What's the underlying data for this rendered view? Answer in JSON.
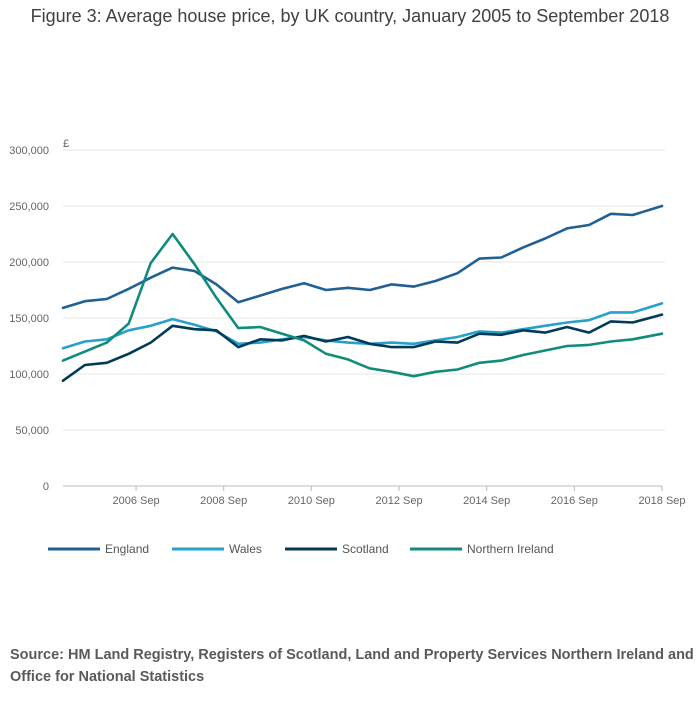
{
  "chart_data": {
    "type": "line",
    "title": "Figure 3: Average house price, by UK country, January 2005 to September 2018",
    "ylabel": "£",
    "xlabel": "",
    "ylim": [
      0,
      300000
    ],
    "y_ticks": [
      0,
      50000,
      100000,
      150000,
      200000,
      250000,
      300000
    ],
    "y_tick_labels": [
      "0",
      "50,000",
      "100,000",
      "150,000",
      "200,000",
      "250,000",
      "300,000"
    ],
    "x_range": [
      "2005 Jan",
      "2018 Sep"
    ],
    "x_ticks": [
      "2006 Sep",
      "2008 Sep",
      "2010 Sep",
      "2012 Sep",
      "2014 Sep",
      "2016 Sep",
      "2018 Sep"
    ],
    "grid": "horizontal",
    "legend_position": "bottom",
    "series": [
      {
        "name": "England",
        "color": "#206095",
        "points": [
          [
            "2005 Jan",
            159000
          ],
          [
            "2005 Jul",
            165000
          ],
          [
            "2006 Jan",
            167000
          ],
          [
            "2006 Jul",
            176000
          ],
          [
            "2007 Jan",
            186000
          ],
          [
            "2007 Jul",
            195000
          ],
          [
            "2008 Jan",
            192000
          ],
          [
            "2008 Jul",
            180000
          ],
          [
            "2009 Jan",
            164000
          ],
          [
            "2009 Jul",
            170000
          ],
          [
            "2010 Jan",
            176000
          ],
          [
            "2010 Jul",
            181000
          ],
          [
            "2011 Jan",
            175000
          ],
          [
            "2011 Jul",
            177000
          ],
          [
            "2012 Jan",
            175000
          ],
          [
            "2012 Jul",
            180000
          ],
          [
            "2013 Jan",
            178000
          ],
          [
            "2013 Jul",
            183000
          ],
          [
            "2014 Jan",
            190000
          ],
          [
            "2014 Jul",
            203000
          ],
          [
            "2015 Jan",
            204000
          ],
          [
            "2015 Jul",
            213000
          ],
          [
            "2016 Jan",
            221000
          ],
          [
            "2016 Jul",
            230000
          ],
          [
            "2017 Jan",
            233000
          ],
          [
            "2017 Jul",
            243000
          ],
          [
            "2018 Jan",
            242000
          ],
          [
            "2018 Sep",
            250000
          ]
        ]
      },
      {
        "name": "Wales",
        "color": "#27a0cc",
        "points": [
          [
            "2005 Jan",
            123000
          ],
          [
            "2005 Jul",
            129000
          ],
          [
            "2006 Jan",
            131000
          ],
          [
            "2006 Jul",
            139000
          ],
          [
            "2007 Jan",
            143000
          ],
          [
            "2007 Jul",
            149000
          ],
          [
            "2008 Jan",
            144000
          ],
          [
            "2008 Jul",
            138000
          ],
          [
            "2009 Jan",
            127000
          ],
          [
            "2009 Jul",
            128000
          ],
          [
            "2010 Jan",
            131000
          ],
          [
            "2010 Jul",
            133000
          ],
          [
            "2011 Jan",
            130000
          ],
          [
            "2011 Jul",
            128000
          ],
          [
            "2012 Jan",
            127000
          ],
          [
            "2012 Jul",
            128000
          ],
          [
            "2013 Jan",
            127000
          ],
          [
            "2013 Jul",
            130000
          ],
          [
            "2014 Jan",
            133000
          ],
          [
            "2014 Jul",
            138000
          ],
          [
            "2015 Jan",
            137000
          ],
          [
            "2015 Jul",
            140000
          ],
          [
            "2016 Jan",
            143000
          ],
          [
            "2016 Jul",
            146000
          ],
          [
            "2017 Jan",
            148000
          ],
          [
            "2017 Jul",
            155000
          ],
          [
            "2018 Jan",
            155000
          ],
          [
            "2018 Sep",
            163000
          ]
        ]
      },
      {
        "name": "Scotland",
        "color": "#003c57",
        "points": [
          [
            "2005 Jan",
            94000
          ],
          [
            "2005 Jul",
            108000
          ],
          [
            "2006 Jan",
            110000
          ],
          [
            "2006 Jul",
            118000
          ],
          [
            "2007 Jan",
            128000
          ],
          [
            "2007 Jul",
            143000
          ],
          [
            "2008 Jan",
            140000
          ],
          [
            "2008 Jul",
            139000
          ],
          [
            "2009 Jan",
            124000
          ],
          [
            "2009 Jul",
            131000
          ],
          [
            "2010 Jan",
            130000
          ],
          [
            "2010 Jul",
            134000
          ],
          [
            "2011 Jan",
            129000
          ],
          [
            "2011 Jul",
            133000
          ],
          [
            "2012 Jan",
            127000
          ],
          [
            "2012 Jul",
            124000
          ],
          [
            "2013 Jan",
            124000
          ],
          [
            "2013 Jul",
            129000
          ],
          [
            "2014 Jan",
            128000
          ],
          [
            "2014 Jul",
            136000
          ],
          [
            "2015 Jan",
            135000
          ],
          [
            "2015 Jul",
            139000
          ],
          [
            "2016 Jan",
            137000
          ],
          [
            "2016 Jul",
            142000
          ],
          [
            "2017 Jan",
            137000
          ],
          [
            "2017 Jul",
            147000
          ],
          [
            "2018 Jan",
            146000
          ],
          [
            "2018 Sep",
            153000
          ]
        ]
      },
      {
        "name": "Northern Ireland",
        "color": "#118c7b",
        "points": [
          [
            "2005 Jan",
            112000
          ],
          [
            "2005 Jul",
            120000
          ],
          [
            "2006 Jan",
            128000
          ],
          [
            "2006 Jul",
            145000
          ],
          [
            "2007 Jan",
            199000
          ],
          [
            "2007 Jul",
            225000
          ],
          [
            "2008 Jan",
            198000
          ],
          [
            "2008 Jul",
            168000
          ],
          [
            "2009 Jan",
            141000
          ],
          [
            "2009 Jul",
            142000
          ],
          [
            "2010 Jan",
            136000
          ],
          [
            "2010 Jul",
            130000
          ],
          [
            "2011 Jan",
            118000
          ],
          [
            "2011 Jul",
            113000
          ],
          [
            "2012 Jan",
            105000
          ],
          [
            "2012 Jul",
            102000
          ],
          [
            "2013 Jan",
            98000
          ],
          [
            "2013 Jul",
            102000
          ],
          [
            "2014 Jan",
            104000
          ],
          [
            "2014 Jul",
            110000
          ],
          [
            "2015 Jan",
            112000
          ],
          [
            "2015 Jul",
            117000
          ],
          [
            "2016 Jan",
            121000
          ],
          [
            "2016 Jul",
            125000
          ],
          [
            "2017 Jan",
            126000
          ],
          [
            "2017 Jul",
            129000
          ],
          [
            "2018 Jan",
            131000
          ],
          [
            "2018 Sep",
            136000
          ]
        ]
      }
    ]
  },
  "source": "Source: HM Land Registry, Registers of Scotland, Land and Property Services Northern Ireland and Office for National Statistics"
}
